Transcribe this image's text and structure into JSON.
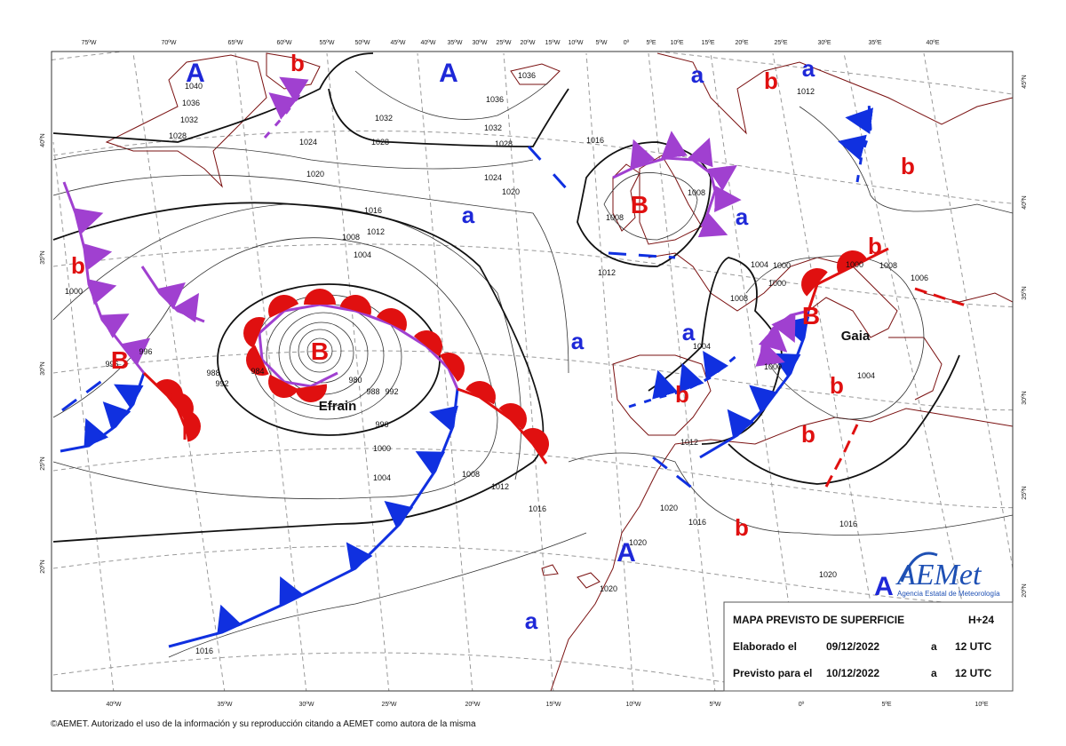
{
  "map": {
    "top_lon_labels": [
      "75ºW",
      "70ºW",
      "65ºW",
      "60ºW",
      "55ºW",
      "50ºW",
      "45ºW",
      "40ºW",
      "35ºW",
      "30ºW",
      "25ºW",
      "20ºW",
      "15ºW",
      "10ºW",
      "5ºW",
      "0º",
      "5ºE",
      "10ºE",
      "15ºE",
      "20ºE",
      "25ºE",
      "30ºE",
      "35ºE",
      "40ºE"
    ],
    "bottom_lon_labels": [
      "40ºW",
      "35ºW",
      "30ºW",
      "25ºW",
      "20ºW",
      "15ºW",
      "10ºW",
      "5ºW",
      "0º",
      "5ºE",
      "10ºE"
    ],
    "left_lat_labels": [
      "40ºN",
      "35ºN",
      "30ºN",
      "25ºN",
      "20ºN"
    ],
    "right_lat_labels": [
      "45ºN",
      "40ºN",
      "35ºN",
      "30ºN",
      "25ºN",
      "20ºN"
    ],
    "high_centers": [
      "A",
      "A",
      "A",
      "A"
    ],
    "high_marks": [
      "a",
      "a",
      "a",
      "a",
      "a",
      "a",
      "a"
    ],
    "low_centers": [
      "B",
      "B",
      "B",
      "B"
    ],
    "low_marks": [
      "b",
      "b",
      "b",
      "b",
      "b",
      "b",
      "b",
      "b",
      "b"
    ],
    "storm_names": [
      "Efrain",
      "Gaia"
    ],
    "isobar_labels": [
      1040,
      1036,
      1032,
      1028,
      1024,
      1020,
      1016,
      1012,
      1008,
      1004,
      1028,
      1032,
      1036,
      1032,
      1028,
      1024,
      1020,
      1016,
      1036,
      1012,
      1008,
      1008,
      1004,
      1000,
      1000,
      1008,
      1004,
      1000,
      1008,
      1006,
      1012,
      1000,
      996,
      996,
      1000,
      1004,
      1008,
      1012,
      1016,
      992,
      988,
      984,
      980,
      988,
      992,
      1012,
      1004,
      1016,
      1016,
      1020,
      1020,
      1020,
      1020,
      1016,
      1000,
      996
    ]
  },
  "info_box": {
    "title": "MAPA PREVISTO DE SUPERFICIE",
    "lead_time": "H+24",
    "rows": [
      [
        "Elaborado el",
        "09/12/2022",
        "a",
        "12 UTC"
      ],
      [
        "Previsto para el",
        "10/12/2022",
        "a",
        "12 UTC"
      ]
    ]
  },
  "logo": {
    "name": "AEMet",
    "subtitle": "Agencia Estatal de Meteorología"
  },
  "footer": {
    "copyright": "©AEMET. Autorizado el uso de la información y su reproducción citando a AEMET como autora de la misma"
  }
}
